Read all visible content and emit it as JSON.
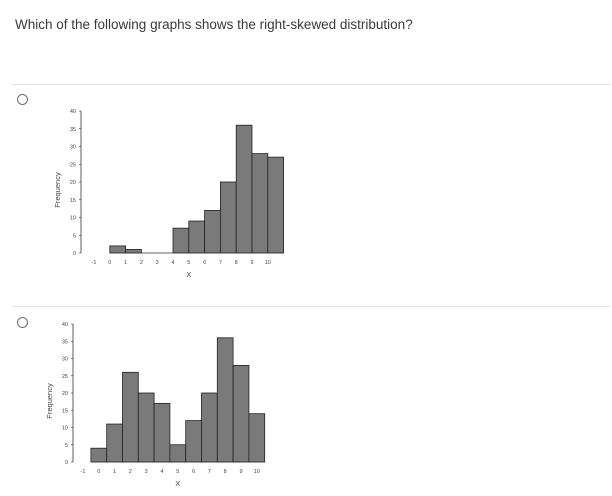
{
  "question": {
    "text": "Which of the following graphs shows the right-skewed distribution?"
  },
  "options": [
    {
      "label": "option-a"
    },
    {
      "label": "option-b"
    }
  ],
  "chart_data": [
    {
      "type": "bar",
      "xlabel": "X",
      "ylabel": "Frequency",
      "x_ticks": [
        "-1",
        "0",
        "1",
        "2",
        "3",
        "4",
        "5",
        "6",
        "7",
        "8",
        "9",
        "10"
      ],
      "y_ticks": [
        "0",
        "5",
        "10",
        "15",
        "20",
        "25",
        "30",
        "35",
        "40"
      ],
      "ylim": [
        0,
        40
      ],
      "bins": [
        {
          "x0": 0,
          "x1": 1,
          "count": 2
        },
        {
          "x0": 1,
          "x1": 2,
          "count": 1
        },
        {
          "x0": 2,
          "x1": 3,
          "count": 0
        },
        {
          "x0": 3,
          "x1": 4,
          "count": 0
        },
        {
          "x0": 4,
          "x1": 5,
          "count": 7
        },
        {
          "x0": 5,
          "x1": 6,
          "count": 9
        },
        {
          "x0": 6,
          "x1": 7,
          "count": 12
        },
        {
          "x0": 7,
          "x1": 8,
          "count": 20
        },
        {
          "x0": 8,
          "x1": 9,
          "count": 36
        },
        {
          "x0": 9,
          "x1": 10,
          "count": 28
        },
        {
          "x0": 10,
          "x1": 11,
          "count": 27
        }
      ],
      "bar_color": "#7a7a7a"
    },
    {
      "type": "bar",
      "xlabel": "X",
      "ylabel": "Frequency",
      "x_ticks": [
        "-1",
        "0",
        "1",
        "2",
        "3",
        "4",
        "5",
        "6",
        "7",
        "8",
        "9",
        "10"
      ],
      "y_ticks": [
        "0",
        "5",
        "10",
        "15",
        "20",
        "25",
        "30",
        "35",
        "40"
      ],
      "ylim": [
        0,
        40
      ],
      "bins": [
        {
          "x0": -0.5,
          "x1": 0.5,
          "count": 4
        },
        {
          "x0": 0.5,
          "x1": 1.5,
          "count": 11
        },
        {
          "x0": 1.5,
          "x1": 2.5,
          "count": 26
        },
        {
          "x0": 2.5,
          "x1": 3.5,
          "count": 20
        },
        {
          "x0": 3.5,
          "x1": 4.5,
          "count": 17
        },
        {
          "x0": 4.5,
          "x1": 5.5,
          "count": 5
        },
        {
          "x0": 5.5,
          "x1": 6.5,
          "count": 12
        },
        {
          "x0": 6.5,
          "x1": 7.5,
          "count": 20
        },
        {
          "x0": 7.5,
          "x1": 8.5,
          "count": 36
        },
        {
          "x0": 8.5,
          "x1": 9.5,
          "count": 28
        },
        {
          "x0": 9.5,
          "x1": 10.5,
          "count": 14
        }
      ],
      "bar_color": "#7a7a7a"
    }
  ]
}
